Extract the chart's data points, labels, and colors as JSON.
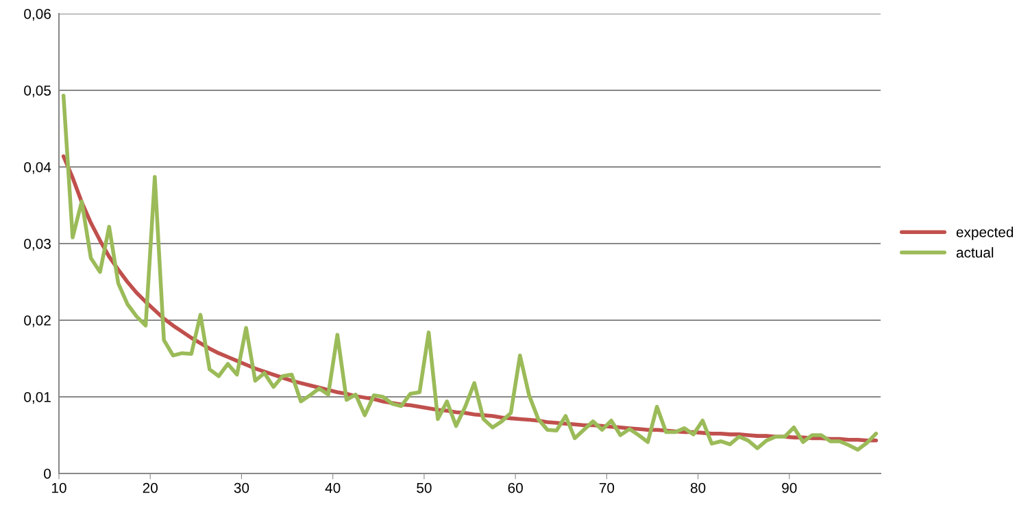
{
  "chart_data": {
    "type": "line",
    "x": [
      10.5,
      11.5,
      12.5,
      13.5,
      14.5,
      15.5,
      16.5,
      17.5,
      18.5,
      19.5,
      20.5,
      21.5,
      22.5,
      23.5,
      24.5,
      25.5,
      26.5,
      27.5,
      28.5,
      29.5,
      30.5,
      31.5,
      32.5,
      33.5,
      34.5,
      35.5,
      36.5,
      37.5,
      38.5,
      39.5,
      40.5,
      41.5,
      42.5,
      43.5,
      44.5,
      45.5,
      46.5,
      47.5,
      48.5,
      49.5,
      50.5,
      51.5,
      52.5,
      53.5,
      54.5,
      55.5,
      56.5,
      57.5,
      58.5,
      59.5,
      60.5,
      61.5,
      62.5,
      63.5,
      64.5,
      65.5,
      66.5,
      67.5,
      68.5,
      69.5,
      70.5,
      71.5,
      72.5,
      73.5,
      74.5,
      75.5,
      76.5,
      77.5,
      78.5,
      79.5,
      80.5,
      81.5,
      82.5,
      83.5,
      84.5,
      85.5,
      86.5,
      87.5,
      88.5,
      89.5,
      90.5,
      91.5,
      92.5,
      93.5,
      94.5,
      95.5,
      96.5,
      97.5,
      98.5,
      99.5
    ],
    "xlim": [
      10,
      100
    ],
    "xticks": [
      10,
      20,
      30,
      40,
      50,
      60,
      70,
      80,
      90
    ],
    "series": [
      {
        "name": "expected",
        "color": "#c0504d",
        "values": [
          0.0414,
          0.0386,
          0.0354,
          0.0327,
          0.0304,
          0.0283,
          0.0266,
          0.025,
          0.0236,
          0.0224,
          0.0213,
          0.0202,
          0.0193,
          0.0185,
          0.0177,
          0.017,
          0.0163,
          0.0157,
          0.0152,
          0.0147,
          0.0142,
          0.0137,
          0.0133,
          0.0129,
          0.0125,
          0.0121,
          0.0118,
          0.0115,
          0.0112,
          0.0109,
          0.0106,
          0.0104,
          0.0101,
          0.0099,
          0.0097,
          0.0094,
          0.0092,
          0.009,
          0.0089,
          0.0087,
          0.0085,
          0.0083,
          0.0082,
          0.008,
          0.0079,
          0.0077,
          0.0076,
          0.0075,
          0.0073,
          0.0072,
          0.0071,
          0.007,
          0.0069,
          0.0067,
          0.0066,
          0.0065,
          0.0064,
          0.0063,
          0.0063,
          0.0062,
          0.0061,
          0.006,
          0.0059,
          0.0058,
          0.0057,
          0.0057,
          0.0056,
          0.0055,
          0.0054,
          0.0054,
          0.0053,
          0.0052,
          0.0052,
          0.0051,
          0.0051,
          0.005,
          0.0049,
          0.0049,
          0.0048,
          0.0048,
          0.0047,
          0.0047,
          0.0046,
          0.0046,
          0.0045,
          0.0045,
          0.0044,
          0.0044,
          0.0043,
          0.0043
        ]
      },
      {
        "name": "actual",
        "color": "#9bbb59",
        "values": [
          0.0493,
          0.0308,
          0.0355,
          0.0281,
          0.0263,
          0.0322,
          0.0248,
          0.0221,
          0.0205,
          0.0193,
          0.0387,
          0.0174,
          0.0154,
          0.0157,
          0.0156,
          0.0207,
          0.0136,
          0.0127,
          0.0143,
          0.0129,
          0.019,
          0.0121,
          0.0131,
          0.0113,
          0.0127,
          0.0129,
          0.0094,
          0.0102,
          0.0111,
          0.0103,
          0.0181,
          0.0096,
          0.0103,
          0.0076,
          0.0102,
          0.01,
          0.0091,
          0.0088,
          0.0104,
          0.0106,
          0.0184,
          0.0071,
          0.0094,
          0.0062,
          0.0087,
          0.0118,
          0.0071,
          0.006,
          0.0068,
          0.0079,
          0.0154,
          0.0102,
          0.0071,
          0.0057,
          0.0056,
          0.0075,
          0.0046,
          0.0057,
          0.0068,
          0.0057,
          0.0069,
          0.005,
          0.0058,
          0.005,
          0.0041,
          0.0087,
          0.0054,
          0.0054,
          0.0059,
          0.0051,
          0.0069,
          0.0039,
          0.0042,
          0.0038,
          0.0048,
          0.0043,
          0.0033,
          0.0043,
          0.0048,
          0.0048,
          0.006,
          0.0041,
          0.005,
          0.005,
          0.0042,
          0.0042,
          0.0037,
          0.0031,
          0.004,
          0.0052
        ]
      }
    ],
    "ylim": [
      0,
      0.06
    ],
    "yticks": [
      0,
      {
        "value": 0.01,
        "label": "0,01"
      },
      {
        "value": 0.02,
        "label": "0,02"
      },
      {
        "value": 0.03,
        "label": "0,03"
      },
      {
        "value": 0.04,
        "label": "0,04"
      },
      {
        "value": 0.05,
        "label": "0,05"
      },
      {
        "value": 0.06,
        "label": "0,06"
      }
    ],
    "grid": "y",
    "legend": "right",
    "marker": "none",
    "line_style": "solid"
  }
}
